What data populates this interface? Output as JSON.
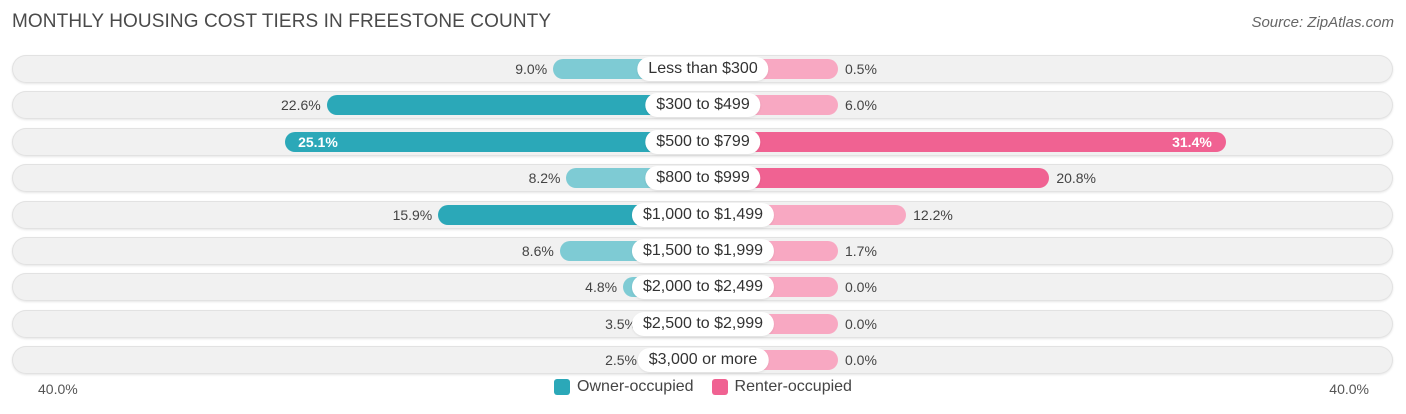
{
  "chart_data": {
    "type": "bar",
    "orientation": "diverging-horizontal",
    "title": "MONTHLY HOUSING COST TIERS IN FREESTONE COUNTY",
    "source": "Source: ZipAtlas.com",
    "categories": [
      "Less than $300",
      "$300 to $499",
      "$500 to $799",
      "$800 to $999",
      "$1,000 to $1,499",
      "$1,500 to $1,999",
      "$2,000 to $2,499",
      "$2,500 to $2,999",
      "$3,000 or more"
    ],
    "series": [
      {
        "name": "Owner-occupied",
        "values": [
          9.0,
          22.6,
          25.1,
          8.2,
          15.9,
          8.6,
          4.8,
          3.5,
          2.5
        ],
        "labels": [
          "9.0%",
          "22.6%",
          "25.1%",
          "8.2%",
          "15.9%",
          "8.6%",
          "4.8%",
          "3.5%",
          "2.5%"
        ]
      },
      {
        "name": "Renter-occupied",
        "values": [
          0.5,
          6.0,
          31.4,
          20.8,
          12.2,
          1.7,
          0.0,
          0.0,
          0.0
        ],
        "labels": [
          "0.5%",
          "6.0%",
          "31.4%",
          "20.8%",
          "12.2%",
          "1.7%",
          "0.0%",
          "0.0%",
          "0.0%"
        ]
      }
    ],
    "xlim": [
      -40,
      40
    ],
    "axis_labels": {
      "left": "40.0%",
      "right": "40.0%"
    },
    "legend": [
      "Owner-occupied",
      "Renter-occupied"
    ],
    "colors": {
      "owner_strong": "#2ba8b8",
      "owner_light": "#7ecbd4",
      "renter_strong": "#f06292",
      "renter_light": "#f8a8c2"
    }
  }
}
